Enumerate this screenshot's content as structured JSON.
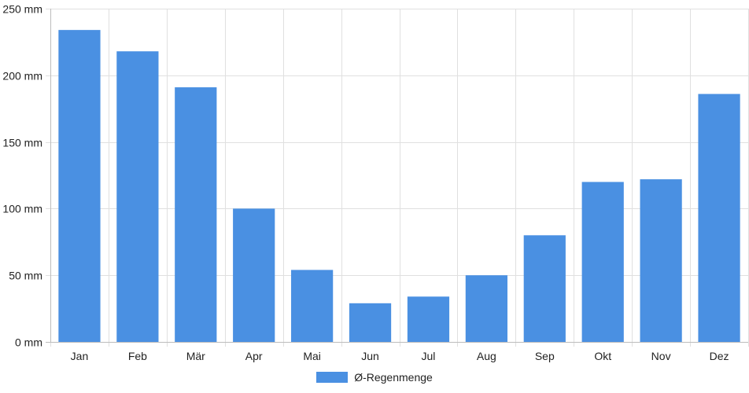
{
  "chart_data": {
    "type": "bar",
    "categories": [
      "Jan",
      "Feb",
      "Mär",
      "Apr",
      "Mai",
      "Jun",
      "Jul",
      "Aug",
      "Sep",
      "Okt",
      "Nov",
      "Dez"
    ],
    "series": [
      {
        "name": "Ø-Regenmenge",
        "values": [
          234,
          218,
          191,
          100,
          54,
          29,
          34,
          50,
          80,
          120,
          122,
          186
        ]
      }
    ],
    "ylim": [
      0,
      250
    ],
    "yticks": [
      0,
      50,
      100,
      150,
      200,
      250
    ],
    "ytick_labels": [
      "0 mm",
      "50 mm",
      "100 mm",
      "150 mm",
      "200 mm",
      "250 mm"
    ],
    "grid": true,
    "legend_position": "bottom-center",
    "bar_color": "#4a90e2"
  }
}
